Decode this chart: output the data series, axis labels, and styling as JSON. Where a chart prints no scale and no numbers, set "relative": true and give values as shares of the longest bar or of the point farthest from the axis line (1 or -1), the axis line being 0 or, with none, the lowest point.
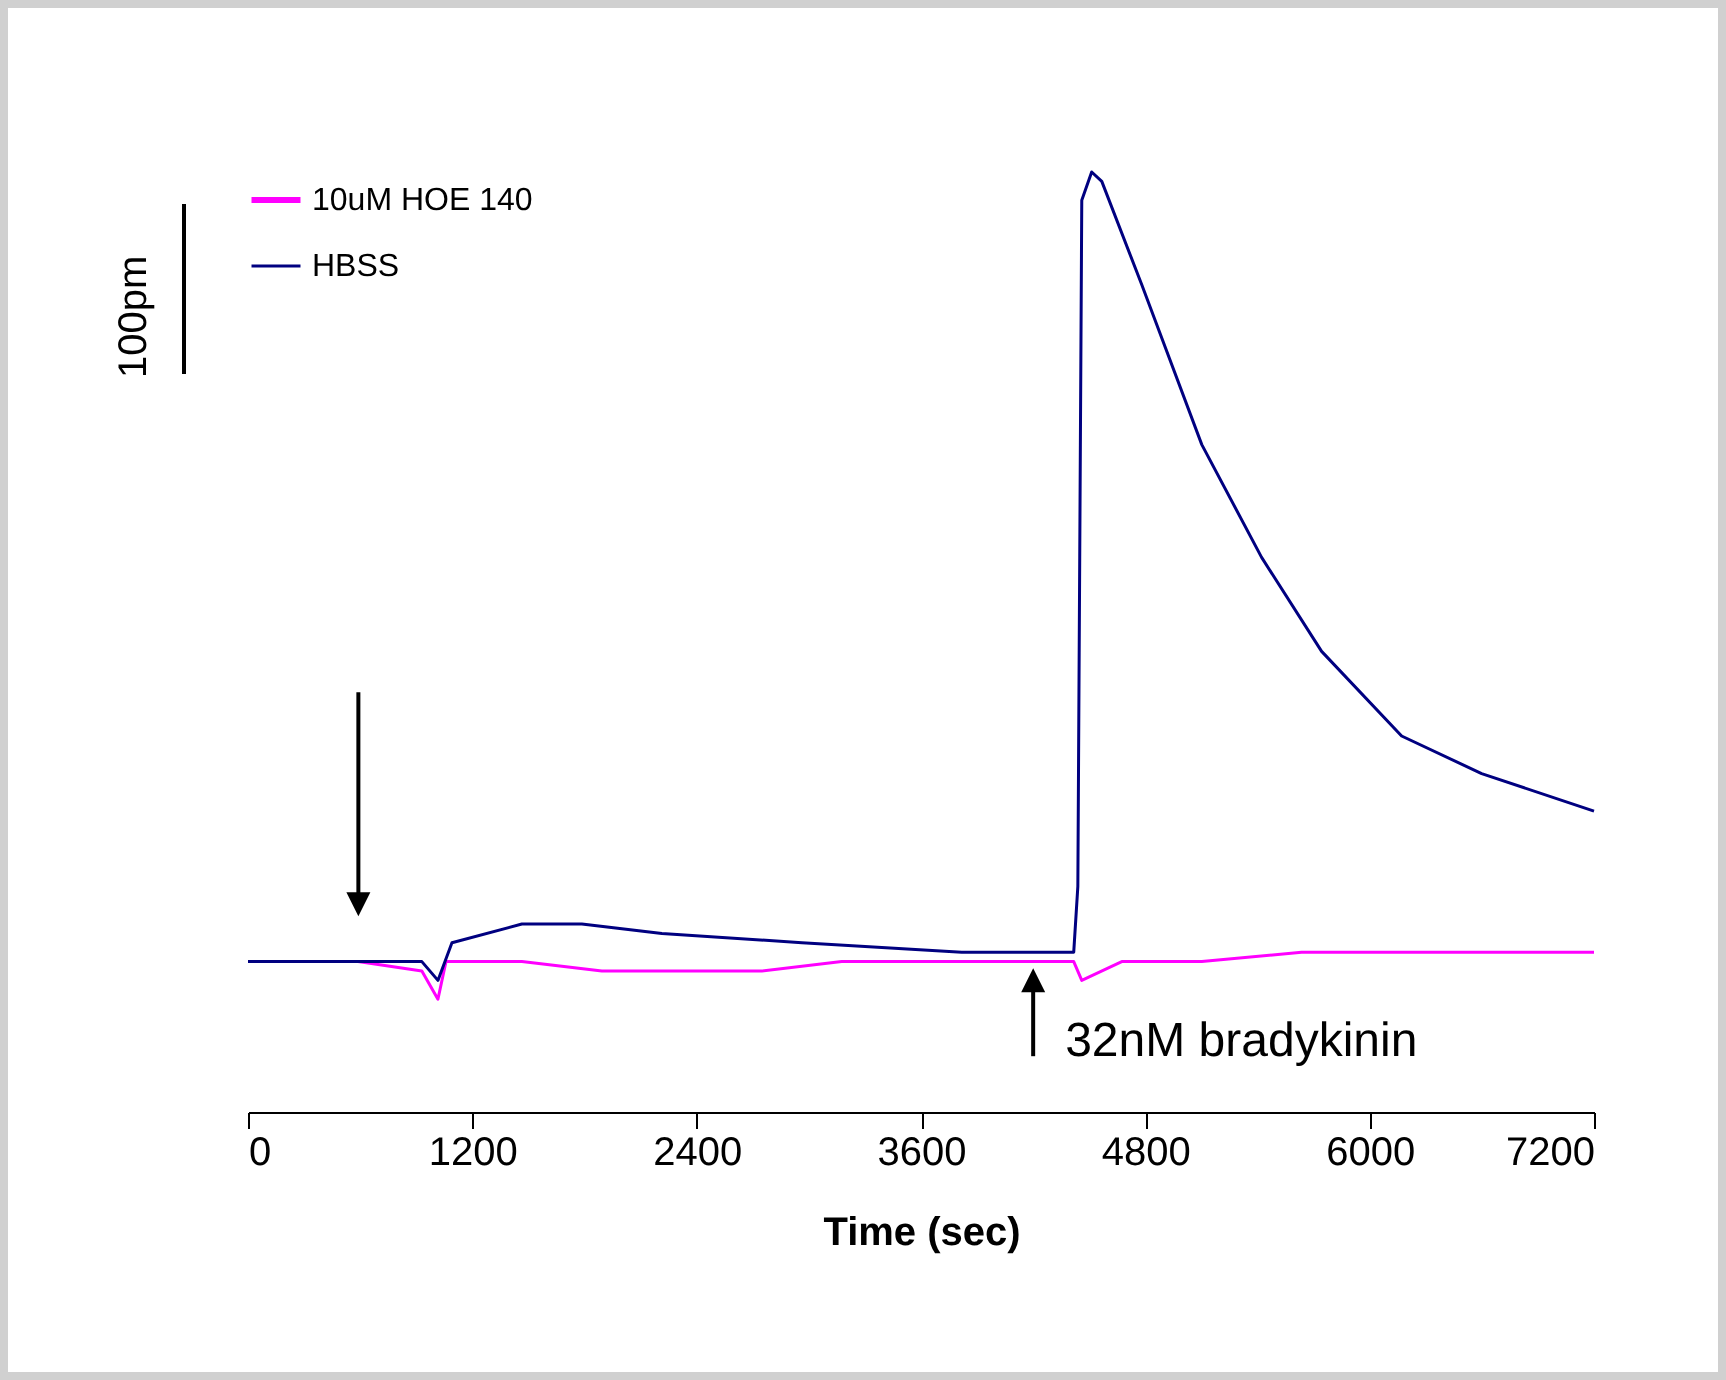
{
  "chart_data": {
    "type": "line",
    "xlabel": "Time (sec)",
    "relative": true,
    "xlim": [
      0,
      7200
    ],
    "xticks": [
      0,
      1200,
      2400,
      3600,
      4800,
      6000,
      7200
    ],
    "grid": false,
    "legend": "top left",
    "marker": "none",
    "line_style": "solid",
    "annotations": [
      "100pm",
      {
        "text": "32nM bradykinin",
        "x": 4200,
        "y": 0.17
      }
    ],
    "series": [
      {
        "name": "10uM HOE 140",
        "color": "#ff00ff",
        "x": [
          0,
          588,
          930,
          1016,
          1059,
          1465,
          1893,
          2749,
          3176,
          4417,
          4460,
          4674,
          5102,
          5636,
          7200
        ],
        "values": [
          0.16,
          0.16,
          0.15,
          0.12,
          0.16,
          0.16,
          0.15,
          0.15,
          0.16,
          0.16,
          0.14,
          0.16,
          0.16,
          0.17,
          0.17
        ]
      },
      {
        "name": "HBSS",
        "color": "#000080",
        "x": [
          0,
          588,
          930,
          1016,
          1091,
          1465,
          1786,
          2214,
          2963,
          3818,
          4417,
          4439,
          4460,
          4513,
          4567,
          4781,
          5102,
          5422,
          5743,
          6171,
          6599,
          7200
        ],
        "values": [
          0.16,
          0.16,
          0.16,
          0.14,
          0.18,
          0.2,
          0.2,
          0.19,
          0.18,
          0.17,
          0.17,
          0.24,
          0.97,
          1,
          0.99,
          0.88,
          0.71,
          0.59,
          0.49,
          0.4,
          0.36,
          0.32
        ]
      }
    ]
  }
}
